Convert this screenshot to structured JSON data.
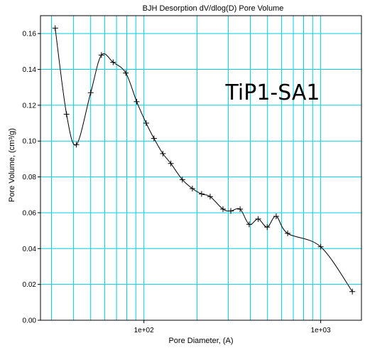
{
  "chart_data": {
    "type": "line",
    "title": "BJH Desorption dV/dlog(D) Pore Volume",
    "xlabel": "Pore Diameter, (A)",
    "ylabel": "Pore Volume, (cm³/g)",
    "annotation": "TiP1-SA1",
    "xscale": "log",
    "xlim": [
      26,
      1700
    ],
    "ylim": [
      0,
      0.17
    ],
    "x_tick_labels": [
      {
        "value": 100,
        "label": "1e+02"
      },
      {
        "value": 1000,
        "label": "1e+03"
      }
    ],
    "y_ticks": [
      0.0,
      0.02,
      0.04,
      0.06,
      0.08,
      0.1,
      0.12,
      0.14,
      0.16
    ],
    "y_tick_labels": [
      "0.00",
      "0.02",
      "0.04",
      "0.06",
      "0.08",
      "0.10",
      "0.12",
      "0.14",
      "0.16"
    ],
    "grid": true,
    "grid_color": "#00d0e0",
    "line_color": "#000000",
    "series": [
      {
        "x": [
          31.5,
          36.5,
          41.5,
          50,
          57.5,
          67,
          79,
          91,
          103,
          114,
          128,
          142,
          165,
          188,
          212,
          237,
          280,
          310,
          350,
          394,
          443,
          498,
          560,
          650,
          1000,
          1510
        ],
        "y": [
          0.163,
          0.115,
          0.098,
          0.127,
          0.148,
          0.144,
          0.138,
          0.122,
          0.11,
          0.1015,
          0.093,
          0.0875,
          0.0785,
          0.0735,
          0.0705,
          0.069,
          0.062,
          0.061,
          0.062,
          0.0535,
          0.0565,
          0.052,
          0.058,
          0.0485,
          0.041,
          0.016
        ]
      }
    ]
  }
}
